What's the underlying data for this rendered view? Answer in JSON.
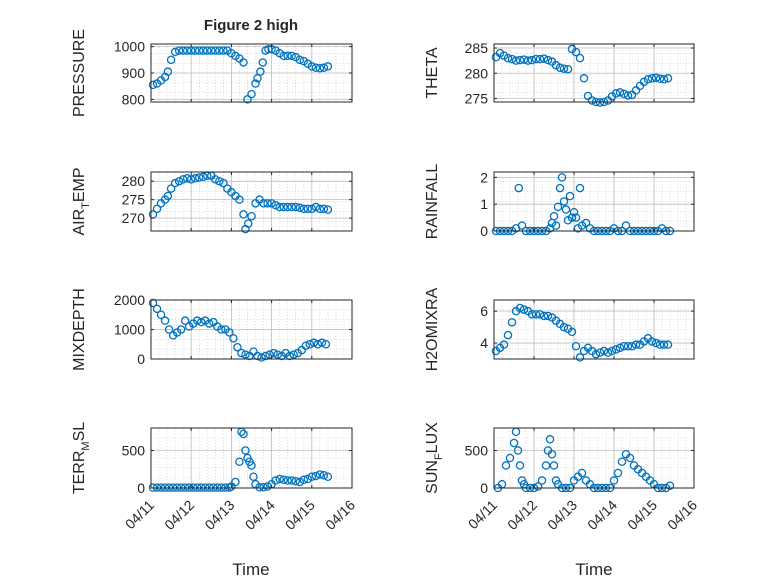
{
  "figure": {
    "title": "Figure 2 high",
    "xlabel": "Time",
    "x_ticks": [
      "04/11",
      "04/12",
      "04/13",
      "04/14",
      "04/15",
      "04/16"
    ],
    "marker_color": "#0072BD"
  },
  "chart_data": [
    {
      "type": "scatter",
      "ylabel": "PRESSURE",
      "ylabel_parts": [
        "PRESSURE"
      ],
      "ylim": [
        790,
        1010
      ],
      "yticks": [
        800,
        900,
        1000
      ],
      "xlim": [
        0,
        5
      ],
      "grid": true,
      "x": [
        0.05,
        0.15,
        0.25,
        0.35,
        0.42,
        0.5,
        0.6,
        0.7,
        0.8,
        0.9,
        1.0,
        1.1,
        1.2,
        1.3,
        1.4,
        1.5,
        1.6,
        1.7,
        1.8,
        1.9,
        2.0,
        2.1,
        2.2,
        2.3,
        2.4,
        2.5,
        2.6,
        2.65,
        2.72,
        2.78,
        2.85,
        2.92,
        3.0,
        3.1,
        3.2,
        3.3,
        3.4,
        3.5,
        3.6,
        3.7,
        3.8,
        3.9,
        4.0,
        4.1,
        4.2,
        4.3,
        4.4
      ],
      "y": [
        855,
        860,
        872,
        885,
        905,
        950,
        980,
        985,
        985,
        985,
        985,
        985,
        985,
        985,
        985,
        985,
        985,
        985,
        985,
        985,
        975,
        965,
        955,
        940,
        800,
        820,
        860,
        880,
        905,
        940,
        985,
        990,
        990,
        985,
        975,
        965,
        965,
        965,
        960,
        950,
        945,
        935,
        925,
        920,
        918,
        920,
        925
      ]
    },
    {
      "type": "scatter",
      "ylabel": "THETA",
      "ylabel_parts": [
        "THETA"
      ],
      "ylim": [
        274.3,
        285.8
      ],
      "yticks": [
        275,
        280,
        285
      ],
      "xlim": [
        0,
        5
      ],
      "grid": true,
      "x": [
        0.05,
        0.15,
        0.25,
        0.35,
        0.45,
        0.55,
        0.65,
        0.75,
        0.85,
        0.95,
        1.05,
        1.15,
        1.25,
        1.35,
        1.45,
        1.55,
        1.65,
        1.75,
        1.85,
        1.95,
        2.05,
        2.15,
        2.25,
        2.35,
        2.45,
        2.55,
        2.65,
        2.75,
        2.85,
        2.95,
        3.05,
        3.15,
        3.25,
        3.35,
        3.45,
        3.55,
        3.65,
        3.75,
        3.85,
        3.95,
        4.05,
        4.15,
        4.25,
        4.35
      ],
      "y": [
        283.2,
        284.0,
        283.5,
        283.0,
        282.8,
        282.5,
        282.6,
        282.7,
        282.5,
        282.6,
        282.8,
        282.8,
        282.9,
        282.6,
        282.3,
        281.6,
        281.1,
        280.9,
        280.8,
        284.8,
        284.2,
        283.0,
        279.0,
        275.5,
        274.6,
        274.3,
        274.2,
        274.3,
        274.6,
        275.4,
        276.0,
        276.2,
        275.9,
        275.6,
        275.7,
        276.6,
        277.5,
        278.3,
        278.8,
        279.0,
        279.1,
        278.9,
        278.8,
        279.0
      ]
    },
    {
      "type": "scatter",
      "ylabel": "AIR_TEMP",
      "ylabel_parts": [
        "AIR",
        "T",
        "EMP"
      ],
      "ylim": [
        266.5,
        282.5
      ],
      "yticks": [
        270,
        275,
        280
      ],
      "xlim": [
        0,
        5
      ],
      "grid": true,
      "x": [
        0.05,
        0.15,
        0.25,
        0.35,
        0.42,
        0.5,
        0.6,
        0.7,
        0.8,
        0.9,
        1.0,
        1.1,
        1.2,
        1.3,
        1.4,
        1.5,
        1.6,
        1.7,
        1.8,
        1.9,
        2.0,
        2.1,
        2.2,
        2.3,
        2.35,
        2.42,
        2.5,
        2.6,
        2.7,
        2.8,
        2.9,
        3.0,
        3.1,
        3.2,
        3.3,
        3.4,
        3.5,
        3.6,
        3.7,
        3.8,
        3.9,
        4.0,
        4.1,
        4.2,
        4.3,
        4.4
      ],
      "y": [
        271,
        272.5,
        274,
        275,
        276,
        278,
        279.5,
        280,
        280.5,
        280.8,
        280.5,
        280.8,
        281,
        281.2,
        281.5,
        281.5,
        280.5,
        280,
        279.5,
        278,
        277,
        276,
        275,
        271,
        267,
        268.5,
        270.5,
        274,
        275,
        274,
        274,
        274,
        273.5,
        273,
        273,
        273,
        273,
        273,
        272.8,
        272.5,
        272.5,
        272.5,
        273,
        272.5,
        272.5,
        272.3
      ]
    },
    {
      "type": "scatter",
      "ylabel": "RAINFALL",
      "ylabel_parts": [
        "RAINFALL"
      ],
      "ylim": [
        0,
        2.2
      ],
      "yticks": [
        0,
        1,
        2
      ],
      "xlim": [
        0,
        5
      ],
      "grid": true,
      "x": [
        0.05,
        0.15,
        0.25,
        0.35,
        0.45,
        0.55,
        0.62,
        0.7,
        0.8,
        0.9,
        1.0,
        1.1,
        1.2,
        1.3,
        1.4,
        1.45,
        1.5,
        1.55,
        1.6,
        1.65,
        1.7,
        1.75,
        1.8,
        1.85,
        1.9,
        1.95,
        2.0,
        2.05,
        2.1,
        2.15,
        2.2,
        2.3,
        2.4,
        2.5,
        2.6,
        2.7,
        2.8,
        2.9,
        3.0,
        3.1,
        3.2,
        3.3,
        3.4,
        3.5,
        3.6,
        3.7,
        3.8,
        3.9,
        4.0,
        4.1,
        4.2,
        4.3,
        4.4
      ],
      "y": [
        0,
        0,
        0,
        0,
        0,
        0.1,
        1.6,
        0.2,
        0,
        0,
        0,
        0,
        0,
        0,
        0.1,
        0.3,
        0.55,
        0.2,
        0.9,
        1.6,
        2.0,
        1.1,
        0.8,
        0.4,
        1.3,
        0.5,
        0.7,
        0.5,
        0.1,
        1.6,
        0.2,
        0.3,
        0.1,
        0,
        0,
        0,
        0,
        0,
        0.1,
        0,
        0,
        0.2,
        0,
        0,
        0,
        0,
        0,
        0,
        0,
        0,
        0.1,
        0,
        0
      ]
    },
    {
      "type": "scatter",
      "ylabel": "MIXDEPTH",
      "ylabel_parts": [
        "MIXDEPTH"
      ],
      "ylim": [
        0,
        2000
      ],
      "yticks": [
        0,
        1000,
        2000
      ],
      "xlim": [
        0,
        5
      ],
      "grid": true,
      "x": [
        0.05,
        0.15,
        0.25,
        0.35,
        0.45,
        0.55,
        0.65,
        0.75,
        0.85,
        0.95,
        1.05,
        1.15,
        1.25,
        1.35,
        1.45,
        1.55,
        1.65,
        1.75,
        1.85,
        1.95,
        2.05,
        2.15,
        2.25,
        2.35,
        2.45,
        2.55,
        2.65,
        2.75,
        2.85,
        2.95,
        3.05,
        3.15,
        3.25,
        3.35,
        3.45,
        3.55,
        3.65,
        3.75,
        3.85,
        3.95,
        4.05,
        4.15,
        4.25,
        4.35
      ],
      "y": [
        1900,
        1700,
        1500,
        1300,
        1000,
        800,
        900,
        1000,
        1300,
        1100,
        1200,
        1300,
        1250,
        1300,
        1200,
        1250,
        1100,
        1000,
        1000,
        900,
        700,
        400,
        200,
        150,
        100,
        250,
        100,
        50,
        100,
        150,
        200,
        150,
        100,
        200,
        100,
        150,
        200,
        300,
        450,
        500,
        550,
        500,
        550,
        500
      ]
    },
    {
      "type": "scatter",
      "ylabel": "H2OMIXRA",
      "ylabel_parts": [
        "H2OMIXRA"
      ],
      "ylim": [
        3,
        6.7
      ],
      "yticks": [
        4,
        6
      ],
      "xlim": [
        0,
        5
      ],
      "grid": true,
      "x": [
        0.05,
        0.15,
        0.25,
        0.35,
        0.45,
        0.55,
        0.65,
        0.75,
        0.85,
        0.95,
        1.05,
        1.15,
        1.25,
        1.35,
        1.45,
        1.55,
        1.65,
        1.75,
        1.85,
        1.95,
        2.05,
        2.15,
        2.25,
        2.35,
        2.45,
        2.55,
        2.65,
        2.75,
        2.85,
        2.95,
        3.05,
        3.15,
        3.25,
        3.35,
        3.45,
        3.55,
        3.65,
        3.75,
        3.85,
        3.95,
        4.05,
        4.15,
        4.25,
        4.35
      ],
      "y": [
        3.5,
        3.7,
        3.9,
        4.5,
        5.3,
        6.0,
        6.2,
        6.1,
        6.0,
        5.8,
        5.8,
        5.8,
        5.7,
        5.7,
        5.6,
        5.4,
        5.2,
        5.0,
        4.9,
        4.7,
        3.8,
        3.1,
        3.5,
        3.7,
        3.5,
        3.3,
        3.4,
        3.5,
        3.4,
        3.5,
        3.6,
        3.7,
        3.8,
        3.8,
        3.8,
        3.9,
        3.9,
        4.1,
        4.3,
        4.1,
        4.0,
        3.9,
        3.9,
        3.9
      ]
    },
    {
      "type": "scatter",
      "ylabel": "TERR_MSL",
      "ylabel_parts": [
        "TERR",
        "M",
        "SL"
      ],
      "ylim": [
        0,
        800
      ],
      "yticks": [
        0,
        500
      ],
      "xlim": [
        0,
        5
      ],
      "grid": true,
      "x": [
        0.05,
        0.15,
        0.25,
        0.35,
        0.45,
        0.55,
        0.65,
        0.75,
        0.85,
        0.95,
        1.05,
        1.15,
        1.25,
        1.35,
        1.45,
        1.55,
        1.65,
        1.75,
        1.85,
        1.95,
        2.0,
        2.1,
        2.2,
        2.25,
        2.3,
        2.35,
        2.4,
        2.45,
        2.5,
        2.55,
        2.6,
        2.7,
        2.8,
        2.9,
        3.0,
        3.1,
        3.2,
        3.3,
        3.4,
        3.5,
        3.6,
        3.7,
        3.8,
        3.9,
        4.0,
        4.1,
        4.2,
        4.3,
        4.4
      ],
      "y": [
        5,
        5,
        5,
        5,
        5,
        5,
        5,
        5,
        5,
        5,
        5,
        5,
        5,
        5,
        5,
        5,
        5,
        5,
        5,
        5,
        20,
        80,
        350,
        750,
        720,
        500,
        400,
        350,
        300,
        150,
        50,
        10,
        10,
        20,
        50,
        100,
        120,
        110,
        100,
        100,
        90,
        80,
        110,
        120,
        150,
        160,
        180,
        170,
        150
      ]
    },
    {
      "type": "scatter",
      "ylabel": "SUN_FLUX",
      "ylabel_parts": [
        "SUN",
        "F",
        "LUX"
      ],
      "ylim": [
        0,
        800
      ],
      "yticks": [
        0,
        500
      ],
      "xlim": [
        0,
        5
      ],
      "grid": true,
      "x": [
        0.1,
        0.2,
        0.3,
        0.4,
        0.5,
        0.55,
        0.6,
        0.65,
        0.7,
        0.75,
        0.8,
        0.9,
        1.0,
        1.1,
        1.2,
        1.3,
        1.35,
        1.4,
        1.45,
        1.5,
        1.55,
        1.6,
        1.7,
        1.8,
        1.9,
        2.0,
        2.1,
        2.2,
        2.3,
        2.4,
        2.5,
        2.6,
        2.7,
        2.8,
        2.9,
        3.0,
        3.1,
        3.2,
        3.3,
        3.4,
        3.5,
        3.6,
        3.7,
        3.8,
        3.9,
        4.0,
        4.1,
        4.2,
        4.3,
        4.4
      ],
      "y": [
        0,
        50,
        300,
        400,
        600,
        750,
        500,
        300,
        100,
        50,
        0,
        0,
        0,
        20,
        100,
        300,
        500,
        650,
        450,
        300,
        100,
        50,
        0,
        0,
        0,
        100,
        150,
        200,
        100,
        50,
        0,
        0,
        0,
        0,
        0,
        100,
        200,
        350,
        450,
        400,
        300,
        250,
        200,
        150,
        100,
        50,
        0,
        0,
        0,
        30
      ]
    }
  ]
}
